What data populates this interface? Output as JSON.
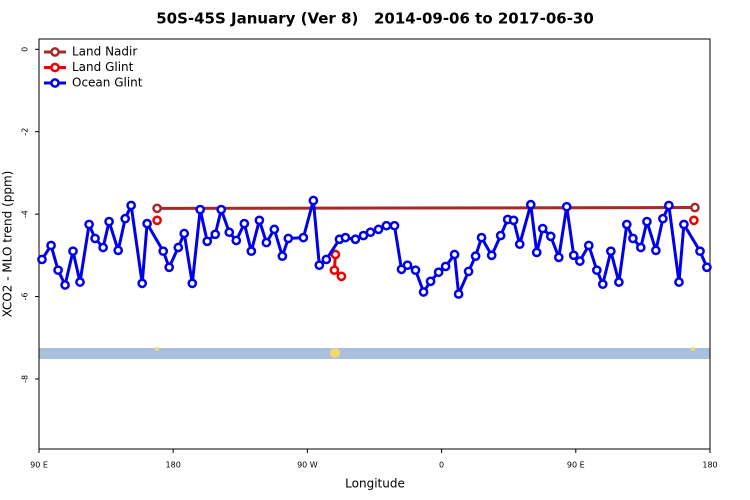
{
  "chart_data": {
    "type": "line",
    "title": "50S-45S January (Ver 8)   2014-09-06 to 2017-06-30",
    "x_label": "Longitude",
    "y_label": "XCO2 - MLO trend (ppm)",
    "xlim": [
      90,
      540
    ],
    "ylim": [
      -9.7,
      0.25
    ],
    "xticks": [
      {
        "value": 90,
        "label": "90 E"
      },
      {
        "value": 180,
        "label": "180"
      },
      {
        "value": 270,
        "label": "90 W"
      },
      {
        "value": 360,
        "label": "0"
      },
      {
        "value": 450,
        "label": "90 E"
      },
      {
        "value": 540,
        "label": "180"
      }
    ],
    "yticks": [
      0,
      -2,
      -4,
      -6,
      -8
    ],
    "legend": "top-left",
    "series": [
      {
        "name": "Land Nadir",
        "color": "#a52a2a",
        "x": [
          169.2,
          529.9
        ],
        "values": [
          -3.86,
          -3.84
        ]
      },
      {
        "name": "Land Glint",
        "color": "#ee0000",
        "x": [
          169.2,
          230,
          288.8,
          288.1,
          292.8,
          400,
          529.2
        ],
        "values": [
          -4.15,
          null,
          -4.98,
          -5.36,
          -5.51,
          null,
          -4.15
        ]
      },
      {
        "name": "Ocean Glint",
        "color": "#0000ee",
        "x": [
          92.0,
          98.1,
          102.8,
          107.5,
          112.8,
          117.5,
          123.6,
          127.6,
          133.0,
          137.0,
          143.1,
          147.8,
          151.8,
          159.2,
          162.5,
          173.3,
          177.3,
          183.4,
          187.4,
          192.8,
          198.1,
          202.8,
          208.2,
          212.2,
          217.6,
          222.3,
          227.7,
          232.4,
          237.8,
          242.5,
          247.8,
          253.2,
          257.2,
          267.3,
          274.0,
          278.0,
          282.7,
          291.5,
          295.5,
          302.2,
          307.6,
          312.3,
          317.7,
          323.0,
          328.4,
          333.1,
          337.1,
          342.5,
          347.9,
          352.6,
          358.0,
          362.7,
          368.7,
          371.4,
          378.1,
          382.8,
          386.8,
          393.6,
          399.6,
          404.3,
          408.3,
          412.4,
          419.8,
          423.8,
          427.8,
          433.2,
          438.6,
          443.9,
          448.6,
          452.7,
          458.7,
          464.1,
          468.1,
          473.5,
          478.9,
          484.2,
          488.3,
          493.6,
          497.7,
          503.7,
          508.4,
          512.4,
          519.2,
          522.5,
          533.3,
          537.9
        ],
        "values": [
          -5.1,
          -4.76,
          -5.36,
          -5.72,
          -4.9,
          -5.65,
          -4.25,
          -4.59,
          -4.81,
          -4.18,
          -4.88,
          -4.11,
          -3.79,
          -5.68,
          -4.23,
          -4.9,
          -5.29,
          -4.81,
          -4.47,
          -5.68,
          -3.89,
          -4.66,
          -4.49,
          -3.89,
          -4.44,
          -4.64,
          -4.23,
          -4.9,
          -4.15,
          -4.69,
          -4.37,
          -5.02,
          -4.59,
          -4.57,
          -3.67,
          -5.24,
          -5.1,
          -4.61,
          -4.57,
          -4.61,
          -4.52,
          -4.44,
          -4.37,
          -4.28,
          -4.28,
          -5.34,
          -5.24,
          -5.36,
          -5.89,
          -5.63,
          -5.41,
          -5.27,
          -4.98,
          -5.94,
          -5.39,
          -5.02,
          -4.57,
          -5.0,
          -4.52,
          -4.13,
          -4.15,
          -4.73,
          -3.77,
          -4.93,
          -4.35,
          -4.54,
          -5.05,
          -3.82,
          -5.0,
          -5.14,
          -4.76,
          -5.36,
          -5.7,
          -4.9,
          -5.65,
          -4.25,
          -4.59,
          -4.81,
          -4.18,
          -4.88,
          -4.11,
          -3.79,
          -5.65,
          -4.25,
          -4.9,
          -5.29
        ]
      }
    ]
  }
}
